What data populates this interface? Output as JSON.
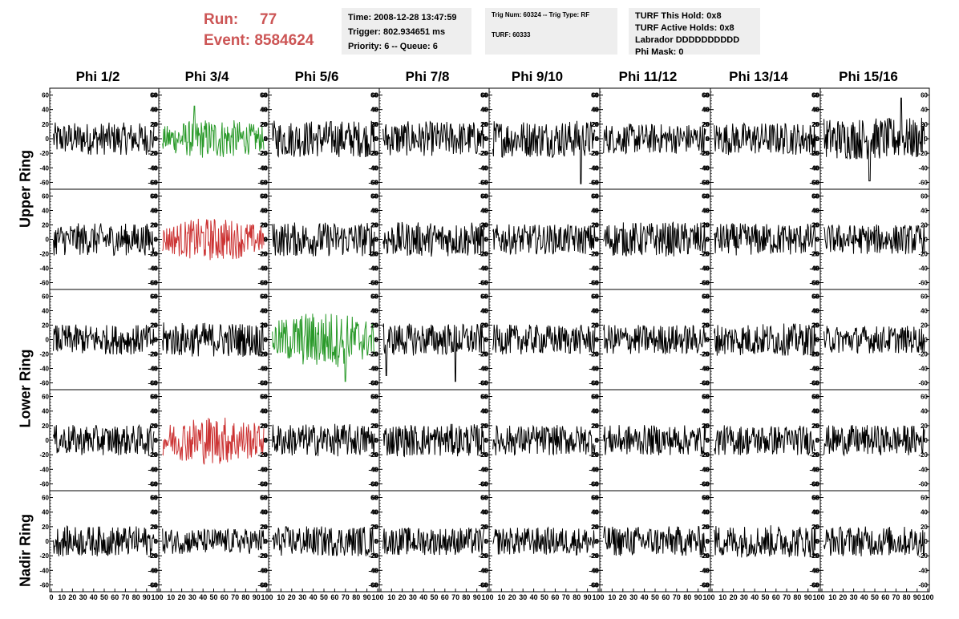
{
  "header": {
    "run_label": "Run:",
    "run_value": "77",
    "event_label": "Event:",
    "event_value": "8584624",
    "run_color": "#cc5555"
  },
  "info_boxes": {
    "time": "Time: 2008-12-28 13:47:59",
    "trigger": "Trigger: 802.934651 ms",
    "priority": "Priority: 6 -- Queue: 6",
    "trig_num": "Trig Num: 60324 -- Trig Type: RF",
    "turf": "TURF: 60333",
    "turf_hold": "TURF This Hold: 0x8",
    "turf_active": "TURF Active Holds: 0x8",
    "labrador": "Labrador DDDDDDDDDD",
    "phi_mask": "Phi Mask: 0"
  },
  "columns": [
    "Phi 1/2",
    "Phi 3/4",
    "Phi 5/6",
    "Phi 7/8",
    "Phi 9/10",
    "Phi 11/12",
    "Phi 13/14",
    "Phi 15/16"
  ],
  "rings": [
    "Upper Ring",
    "Lower Ring",
    "Nadir Ring"
  ],
  "chart_data": {
    "type": "line",
    "description_of_grid": "5 rows x 8 columns of waveform panels",
    "ylim": [
      -65,
      65
    ],
    "xlim": [
      0,
      100
    ],
    "y_ticks": [
      -60,
      -40,
      -20,
      0,
      20,
      40,
      60
    ],
    "x_ticks": [
      0,
      10,
      20,
      30,
      40,
      50,
      60,
      70,
      80,
      90,
      100
    ],
    "colors": {
      "normal": "#000000",
      "green": "#2a9a2a",
      "red": "#cc3333"
    },
    "highlighted": [
      {
        "row": 0,
        "col": 1,
        "color": "green"
      },
      {
        "row": 1,
        "col": 1,
        "color": "red"
      },
      {
        "row": 2,
        "col": 2,
        "color": "green"
      },
      {
        "row": 3,
        "col": 1,
        "color": "red"
      }
    ],
    "amplitudes": [
      [
        14,
        14,
        16,
        15,
        16,
        13,
        14,
        18
      ],
      [
        14,
        15,
        15,
        15,
        13,
        15,
        14,
        13
      ],
      [
        13,
        15,
        20,
        14,
        13,
        13,
        14,
        12
      ],
      [
        13,
        17,
        14,
        14,
        13,
        13,
        13,
        13
      ],
      [
        13,
        11,
        13,
        12,
        12,
        13,
        14,
        13
      ]
    ],
    "spikes": [
      {
        "row": 0,
        "col": 1,
        "x": 32,
        "y": 45
      },
      {
        "row": 0,
        "col": 4,
        "x": 84,
        "y": -62
      },
      {
        "row": 0,
        "col": 7,
        "x": 75,
        "y": 56
      },
      {
        "row": 0,
        "col": 7,
        "x": 45,
        "y": -58
      },
      {
        "row": 2,
        "col": 3,
        "x": 5,
        "y": -50
      },
      {
        "row": 2,
        "col": 3,
        "x": 70,
        "y": -58
      },
      {
        "row": 2,
        "col": 2,
        "x": 70,
        "y": -58
      }
    ]
  }
}
